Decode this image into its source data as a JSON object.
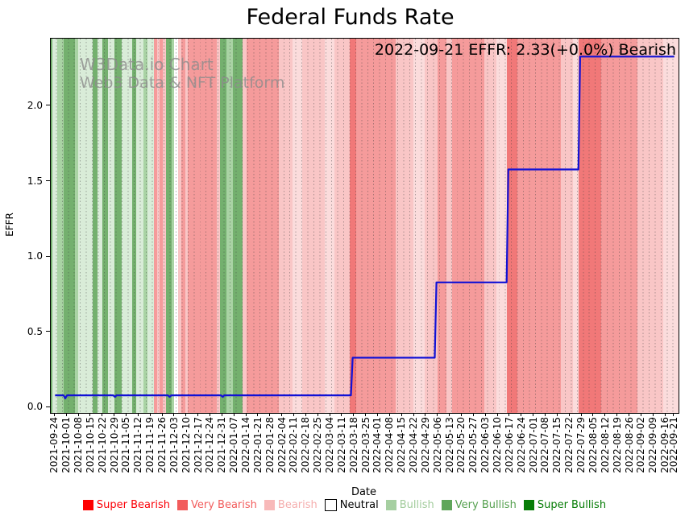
{
  "page": {
    "title": "Federal Funds Rate"
  },
  "annotation": {
    "text": "2022-09-21 EFFR: 2.33(+0.0%) Bearish"
  },
  "watermark": {
    "line1": "W3Data.io Chart",
    "line2": "Web3 Data & NFT Platform"
  },
  "axes": {
    "y_label": "EFFR",
    "x_label": "Date",
    "y_ticks": [
      "0.0",
      "0.5",
      "1.0",
      "1.5",
      "2.0"
    ],
    "x_tick_labels": [
      "2021-09-24",
      "2021-10-01",
      "2021-10-08",
      "2021-10-15",
      "2021-10-22",
      "2021-10-29",
      "2021-11-05",
      "2021-11-12",
      "2021-11-19",
      "2021-11-26",
      "2021-12-03",
      "2021-12-10",
      "2021-12-17",
      "2021-12-24",
      "2021-12-31",
      "2022-01-07",
      "2022-01-14",
      "2022-01-21",
      "2022-01-28",
      "2022-02-04",
      "2022-02-11",
      "2022-02-18",
      "2022-02-25",
      "2022-03-04",
      "2022-03-11",
      "2022-03-18",
      "2022-03-25",
      "2022-04-01",
      "2022-04-08",
      "2022-04-15",
      "2022-04-22",
      "2022-04-29",
      "2022-05-06",
      "2022-05-13",
      "2022-05-20",
      "2022-05-27",
      "2022-06-03",
      "2022-06-10",
      "2022-06-17",
      "2022-06-24",
      "2022-07-01",
      "2022-07-08",
      "2022-07-15",
      "2022-07-22",
      "2022-07-29",
      "2022-08-05",
      "2022-08-12",
      "2022-08-19",
      "2022-08-26",
      "2022-09-02",
      "2022-09-09",
      "2022-09-16",
      "2022-09-21"
    ]
  },
  "colors": {
    "line": "#1111d6",
    "sentiment": {
      "super_bearish": "#fe0000",
      "very_bearish_dark": "#f17878",
      "very_bearish": "#f59b9b",
      "bearish": "#f9c6c6",
      "bearish_pale": "#fbdcdc",
      "neutral": "#ffffff",
      "bullish_pale": "#d9ecd8",
      "bullish": "#a9d3a4",
      "very_bullish": "#74b06e",
      "super_bullish": "#077d07"
    }
  },
  "legend": {
    "items": [
      {
        "label": "Super Bearish",
        "color": "#fe0000",
        "text_color": "#fb0007",
        "outlined": false
      },
      {
        "label": "Very Bearish",
        "color": "#f25c5c",
        "text_color": "#f25c5c",
        "outlined": false
      },
      {
        "label": "Bearish",
        "color": "#f8b9b9",
        "text_color": "#f5aeae",
        "outlined": false
      },
      {
        "label": "Neutral",
        "color": "#ffffff",
        "text_color": "#000000",
        "outlined": true
      },
      {
        "label": "Bullish",
        "color": "#a6cfa1",
        "text_color": "#a2cc9c",
        "outlined": false
      },
      {
        "label": "Very Bullish",
        "color": "#5fa65a",
        "text_color": "#55a04f",
        "outlined": false
      },
      {
        "label": "Super Bullish",
        "color": "#077d07",
        "text_color": "#077d07",
        "outlined": false
      }
    ]
  },
  "chart_data": {
    "type": "line",
    "title": "Federal Funds Rate",
    "xlabel": "Date",
    "ylabel": "EFFR",
    "ylim": [
      -0.04,
      2.45
    ],
    "x_range": [
      "2021-09-24",
      "2022-09-21"
    ],
    "grid": "daily dotted vertical gridlines",
    "legend_position": "bottom center",
    "legend_entries": [
      "Super Bearish",
      "Very Bearish",
      "Bearish",
      "Neutral",
      "Bullish",
      "Very Bullish",
      "Super Bullish"
    ],
    "last_point": {
      "date": "2022-09-21",
      "value": 2.33,
      "change": "+0.0%",
      "sentiment": "Bearish"
    },
    "series": [
      {
        "name": "EFFR",
        "step": true,
        "points": [
          [
            "2021-09-24",
            0.08
          ],
          [
            "2021-09-29",
            0.08
          ],
          [
            "2021-09-30",
            0.06
          ],
          [
            "2021-10-01",
            0.08
          ],
          [
            "2021-10-28",
            0.08
          ],
          [
            "2021-10-29",
            0.07
          ],
          [
            "2021-10-30",
            0.08
          ],
          [
            "2021-11-29",
            0.08
          ],
          [
            "2021-11-30",
            0.07
          ],
          [
            "2021-12-01",
            0.08
          ],
          [
            "2021-12-30",
            0.08
          ],
          [
            "2021-12-31",
            0.07
          ],
          [
            "2022-01-01",
            0.08
          ],
          [
            "2022-03-16",
            0.08
          ],
          [
            "2022-03-17",
            0.33
          ],
          [
            "2022-05-04",
            0.33
          ],
          [
            "2022-05-05",
            0.83
          ],
          [
            "2022-06-15",
            0.83
          ],
          [
            "2022-06-16",
            1.58
          ],
          [
            "2022-07-27",
            1.58
          ],
          [
            "2022-07-28",
            2.33
          ],
          [
            "2022-09-21",
            2.33
          ]
        ]
      }
    ],
    "background_bands": [
      [
        0,
        2,
        "very_bullish"
      ],
      [
        2,
        8,
        "bullish_pale"
      ],
      [
        8,
        16,
        "bullish"
      ],
      [
        16,
        30,
        "very_bullish"
      ],
      [
        30,
        34,
        "bullish"
      ],
      [
        34,
        52,
        "bullish_pale"
      ],
      [
        52,
        58,
        "very_bullish"
      ],
      [
        58,
        64,
        "bullish_pale"
      ],
      [
        64,
        71,
        "very_bullish"
      ],
      [
        71,
        79,
        "bullish_pale"
      ],
      [
        79,
        88,
        "very_bullish"
      ],
      [
        88,
        101,
        "bullish_pale"
      ],
      [
        101,
        106,
        "very_bullish"
      ],
      [
        106,
        115,
        "bullish_pale"
      ],
      [
        115,
        120,
        "bullish"
      ],
      [
        120,
        128,
        "bullish_pale"
      ],
      [
        128,
        132,
        "very_bearish"
      ],
      [
        132,
        135,
        "bearish"
      ],
      [
        135,
        139,
        "very_bearish"
      ],
      [
        139,
        143,
        "bearish"
      ],
      [
        143,
        150,
        "very_bullish"
      ],
      [
        150,
        153,
        "bullish"
      ],
      [
        153,
        158,
        "neutral"
      ],
      [
        158,
        162,
        "bearish"
      ],
      [
        162,
        167,
        "very_bearish"
      ],
      [
        167,
        170,
        "bearish"
      ],
      [
        170,
        206,
        "very_bearish"
      ],
      [
        206,
        210,
        "bearish"
      ],
      [
        210,
        218,
        "very_bullish"
      ],
      [
        218,
        226,
        "bullish"
      ],
      [
        226,
        238,
        "very_bullish"
      ],
      [
        238,
        243,
        "bearish"
      ],
      [
        243,
        283,
        "very_bearish"
      ],
      [
        283,
        300,
        "bearish"
      ],
      [
        300,
        312,
        "bearish_pale"
      ],
      [
        312,
        340,
        "bearish"
      ],
      [
        340,
        352,
        "bearish_pale"
      ],
      [
        352,
        371,
        "bearish"
      ],
      [
        371,
        379,
        "very_bearish_dark"
      ],
      [
        379,
        428,
        "very_bearish"
      ],
      [
        428,
        450,
        "bearish"
      ],
      [
        450,
        464,
        "bearish_pale"
      ],
      [
        464,
        480,
        "bearish"
      ],
      [
        480,
        491,
        "very_bearish"
      ],
      [
        491,
        498,
        "bearish"
      ],
      [
        498,
        538,
        "very_bearish"
      ],
      [
        538,
        553,
        "bearish"
      ],
      [
        553,
        566,
        "bearish_pale"
      ],
      [
        566,
        579,
        "very_bearish_dark"
      ],
      [
        579,
        633,
        "very_bearish"
      ],
      [
        633,
        648,
        "bearish"
      ],
      [
        648,
        655,
        "bearish_pale"
      ],
      [
        655,
        683,
        "very_bearish_dark"
      ],
      [
        683,
        728,
        "very_bearish"
      ],
      [
        728,
        760,
        "bearish"
      ],
      [
        760,
        779,
        "bearish_pale"
      ]
    ]
  }
}
